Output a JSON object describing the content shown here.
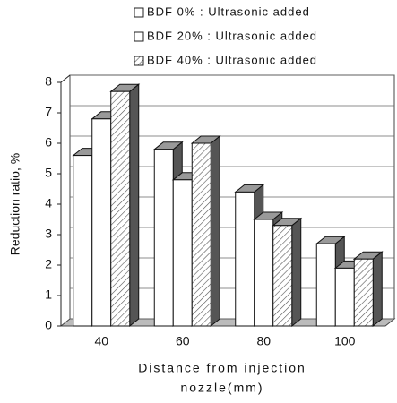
{
  "chart_data": {
    "type": "bar3d",
    "ylabel": "Reduction ratio, %",
    "xlabel": [
      "Distance from injection",
      "nozzle(mm)"
    ],
    "categories": [
      "40",
      "60",
      "80",
      "100"
    ],
    "series": [
      {
        "name": "BDF  0% : Ultrasonic added",
        "color": "#ffffff",
        "hatch": false,
        "values": [
          5.6,
          5.8,
          4.4,
          2.7
        ]
      },
      {
        "name": "BDF 20% : Ultrasonic added",
        "color": "#ffffff",
        "hatch": false,
        "values": [
          6.8,
          4.8,
          3.5,
          1.9
        ]
      },
      {
        "name": "BDF 40% : Ultrasonic added",
        "color": "#ffffff",
        "hatch": true,
        "values": [
          7.7,
          6.0,
          3.3,
          2.2
        ]
      }
    ],
    "ylim": [
      0,
      8
    ],
    "yticks": [
      0,
      1,
      2,
      3,
      4,
      5,
      6,
      7,
      8
    ],
    "grid": true,
    "legend": "top"
  }
}
